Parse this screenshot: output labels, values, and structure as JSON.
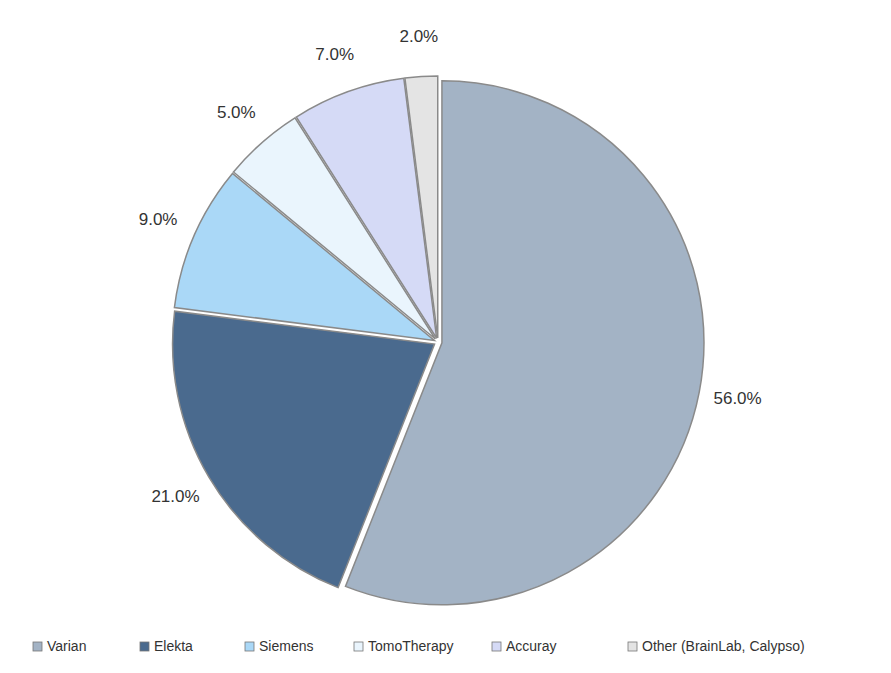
{
  "chart_data": {
    "type": "pie",
    "categories": [
      "Varian",
      "Elekta",
      "Siemens",
      "TomoTherapy",
      "Accuray",
      "Other (BrainLab, Calypso)"
    ],
    "values": [
      56,
      21,
      9,
      5,
      7,
      2
    ],
    "value_labels": [
      "56.0%",
      "21.0%",
      "9.0%",
      "5.0%",
      "7.0%",
      "2.0%"
    ],
    "colors": [
      "#a3b3c5",
      "#4a6a8e",
      "#aad8f7",
      "#eaf5fd",
      "#d5daf6",
      "#e4e4e4"
    ],
    "data_labels": true,
    "legend": "bottom"
  }
}
